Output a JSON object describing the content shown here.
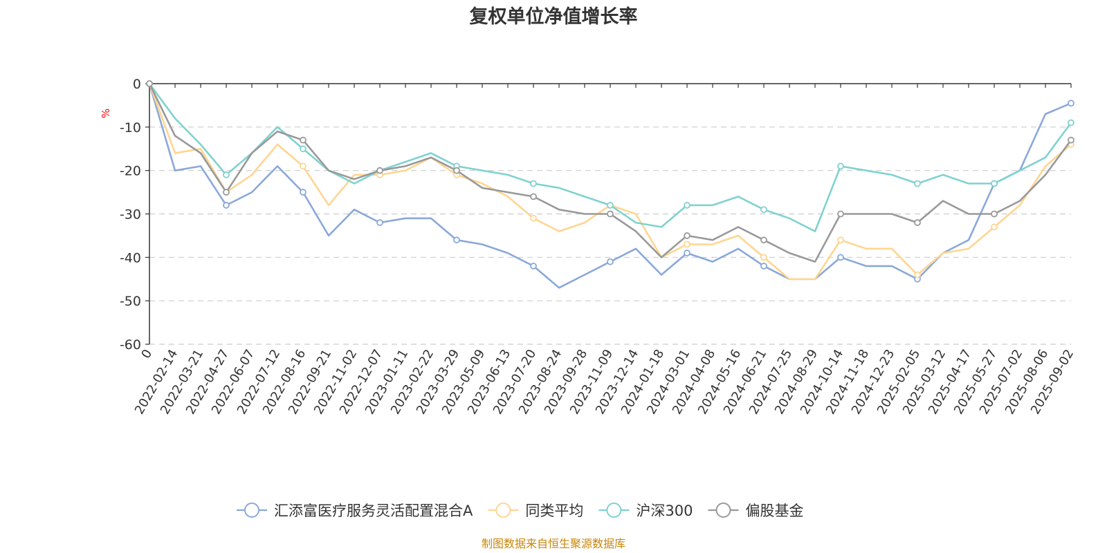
{
  "chart_data": {
    "type": "line",
    "title": "复权单位净值增长率",
    "ylabel": "%",
    "ylim": [
      -60,
      0
    ],
    "yticks": [
      0,
      -10,
      -20,
      -30,
      -40,
      -50,
      -60
    ],
    "grid": true,
    "legend_position": "bottom",
    "source": "制图数据来自恒生聚源数据库",
    "x": [
      "0",
      "2022-02-14",
      "2022-03-21",
      "2022-04-27",
      "2022-06-07",
      "2022-07-12",
      "2022-08-16",
      "2022-09-21",
      "2022-11-02",
      "2022-12-07",
      "2023-01-11",
      "2023-02-22",
      "2023-03-29",
      "2023-05-09",
      "2023-06-13",
      "2023-07-20",
      "2023-08-24",
      "2023-09-28",
      "2023-11-09",
      "2023-12-14",
      "2024-01-18",
      "2024-03-01",
      "2024-04-08",
      "2024-05-16",
      "2024-06-21",
      "2024-07-25",
      "2024-08-29",
      "2024-10-14",
      "2024-11-18",
      "2024-12-23",
      "2025-02-05",
      "2025-03-12",
      "2025-04-17",
      "2025-05-27",
      "2025-07-02",
      "2025-08-06",
      "2025-09-02"
    ],
    "series": [
      {
        "name": "汇添富医疗服务灵活配置混合A",
        "color": "#8aa8da",
        "values": [
          0,
          -20,
          -19,
          -28,
          -25,
          -19,
          -25,
          -35,
          -29,
          -32,
          -31,
          -31,
          -36,
          -37,
          -39,
          -42,
          -47,
          -44,
          -41,
          -38,
          -44,
          -39,
          -41,
          -38,
          -42,
          -45,
          -45,
          -40,
          -42,
          -42,
          -45,
          -39,
          -36,
          -23,
          -20,
          -7,
          -4.5
        ]
      },
      {
        "name": "同类平均",
        "color": "#ffd591",
        "values": [
          0,
          -16,
          -15,
          -25,
          -21,
          -14,
          -19,
          -28,
          -21,
          -21,
          -20,
          -17,
          -21,
          -23,
          -26,
          -31,
          -34,
          -32,
          -28,
          -30,
          -40,
          -37,
          -37,
          -35,
          -40,
          -45,
          -45,
          -36,
          -38,
          -38,
          -44,
          -39,
          -38,
          -33,
          -28,
          -19,
          -14
        ]
      },
      {
        "name": "沪深300",
        "color": "#7fd2d0",
        "values": [
          0,
          -8,
          -14,
          -21,
          -16,
          -10,
          -15,
          -20,
          -23,
          -20,
          -18,
          -16,
          -19,
          -20,
          -21,
          -23,
          -24,
          -26,
          -28,
          -32,
          -33,
          -28,
          -28,
          -26,
          -29,
          -31,
          -34,
          -19,
          -20,
          -21,
          -23,
          -21,
          -23,
          -23,
          -20,
          -17,
          -9
        ]
      },
      {
        "name": "偏股基金",
        "color": "#999999",
        "values": [
          0,
          -12,
          -16,
          -25,
          -16,
          -11,
          -13,
          -20,
          -22,
          -20,
          -19,
          -17,
          -20,
          -24,
          -25,
          -26,
          -29,
          -30,
          -30,
          -34,
          -40,
          -35,
          -36,
          -33,
          -36,
          -39,
          -41,
          -30,
          -30,
          -30,
          -32,
          -27,
          -30,
          -30,
          -27,
          -21,
          -13
        ]
      }
    ]
  }
}
